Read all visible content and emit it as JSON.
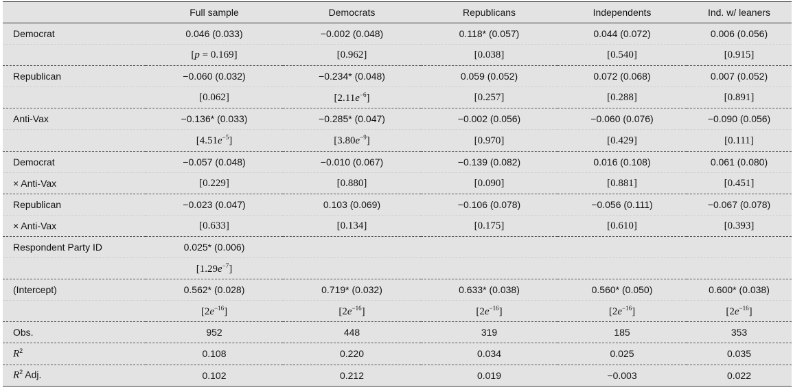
{
  "columns": [
    "",
    "Full sample",
    "Democrats",
    "Republicans",
    "Independents",
    "Ind. w/ leaners"
  ],
  "rows": [
    {
      "label": "Democrat",
      "cells": [
        "0.046 (0.033)",
        "−0.002 (0.048)",
        "0.118* (0.057)",
        "0.044 (0.072)",
        "0.006 (0.056)"
      ]
    },
    {
      "label": "",
      "cells": [
        "[p = 0.169]",
        "[0.962]",
        "[0.038]",
        "[0.540]",
        "[0.915]"
      ]
    },
    {
      "label": "Republican",
      "cells": [
        "−0.060 (0.032)",
        "−0.234* (0.048)",
        "0.059 (0.052)",
        "0.072 (0.068)",
        "0.007 (0.052)"
      ]
    },
    {
      "label": "",
      "cells": [
        "[0.062]",
        "[2.11e−6]",
        "[0.257]",
        "[0.288]",
        "[0.891]"
      ]
    },
    {
      "label": "Anti-Vax",
      "cells": [
        "−0.136* (0.033)",
        "−0.285* (0.047)",
        "−0.002 (0.056)",
        "−0.060 (0.076)",
        "−0.090 (0.056)"
      ]
    },
    {
      "label": "",
      "cells": [
        "[4.51e−5]",
        "[3.80e−9]",
        "[0.970]",
        "[0.429]",
        "[0.111]"
      ]
    },
    {
      "label": "Democrat",
      "cells": [
        "−0.057 (0.048)",
        "−0.010 (0.067)",
        "−0.139 (0.082)",
        "0.016 (0.108)",
        "0.061 (0.080)"
      ]
    },
    {
      "label": "× Anti-Vax",
      "cells": [
        "[0.229]",
        "[0.880]",
        "[0.090]",
        "[0.881]",
        "[0.451]"
      ]
    },
    {
      "label": "Republican",
      "cells": [
        "−0.023 (0.047)",
        "0.103 (0.069)",
        "−0.106 (0.078)",
        "−0.056 (0.111)",
        "−0.067 (0.078)"
      ]
    },
    {
      "label": "× Anti-Vax",
      "cells": [
        "[0.633]",
        "[0.134]",
        "[0.175]",
        "[0.610]",
        "[0.393]"
      ]
    },
    {
      "label": "Respondent Party ID",
      "cells": [
        "0.025* (0.006)",
        "",
        "",
        "",
        ""
      ]
    },
    {
      "label": "",
      "cells": [
        "[1.29e−7]",
        "",
        "",
        "",
        ""
      ]
    },
    {
      "label": "(Intercept)",
      "cells": [
        "0.562* (0.028)",
        "0.719* (0.032)",
        "0.633* (0.038)",
        "0.560* (0.050)",
        "0.600* (0.038)"
      ]
    },
    {
      "label": "",
      "cells": [
        "[2e−16]",
        "[2e−16]",
        "[2e−16]",
        "[2e−16]",
        "[2e−16]"
      ]
    },
    {
      "label": "Obs.",
      "cells": [
        "952",
        "448",
        "319",
        "185",
        "353"
      ]
    },
    {
      "label": "R2",
      "cells": [
        "0.108",
        "0.220",
        "0.034",
        "0.025",
        "0.035"
      ]
    },
    {
      "label": "R2 Adj.",
      "cells": [
        "0.102",
        "0.212",
        "0.019",
        "−0.003",
        "0.022"
      ]
    }
  ]
}
